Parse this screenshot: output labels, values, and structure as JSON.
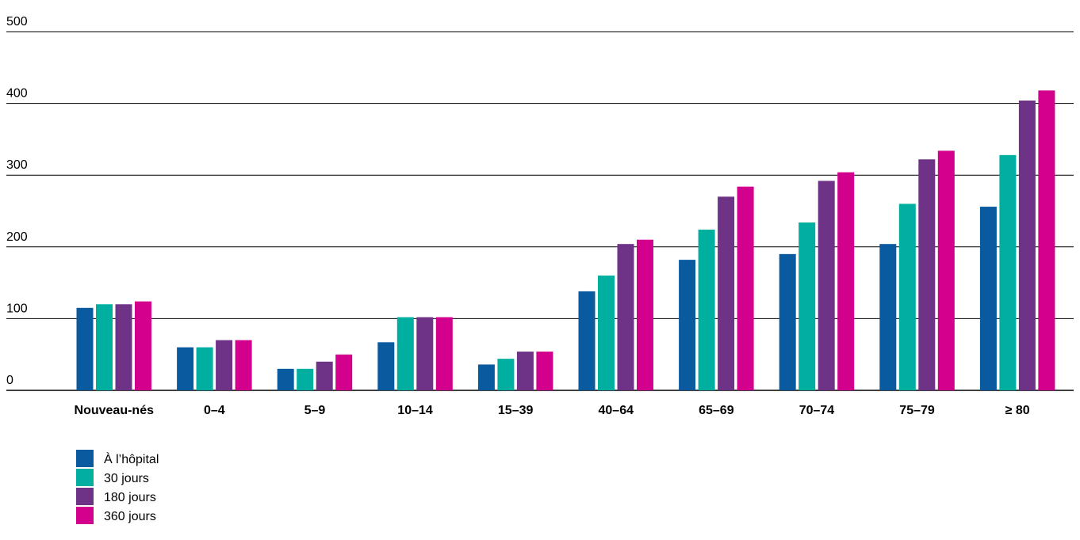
{
  "chart_data": {
    "type": "bar",
    "title": "",
    "xlabel": "",
    "ylabel": "",
    "ylim": [
      0,
      500
    ],
    "yticks": [
      0,
      100,
      200,
      300,
      400,
      500
    ],
    "grid": "horizontal",
    "legend_position": "bottom-left",
    "categories": [
      "Nouveau-nés",
      "0–4",
      "5–9",
      "10–14",
      "15–39",
      "40–64",
      "65–69",
      "70–74",
      "75–79",
      "≥ 80"
    ],
    "series": [
      {
        "name": "À l’hôpital",
        "color": "#0a5aa0",
        "values": [
          115,
          60,
          30,
          67,
          36,
          138,
          182,
          190,
          204,
          256
        ]
      },
      {
        "name": "30 jours",
        "color": "#00afa0",
        "values": [
          120,
          60,
          30,
          102,
          44,
          160,
          224,
          234,
          260,
          328
        ]
      },
      {
        "name": "180 jours",
        "color": "#6e3287",
        "values": [
          120,
          70,
          40,
          102,
          54,
          204,
          270,
          292,
          322,
          404
        ]
      },
      {
        "name": "360 jours",
        "color": "#d2008c",
        "values": [
          124,
          70,
          50,
          102,
          54,
          210,
          284,
          304,
          334,
          418
        ]
      }
    ]
  }
}
